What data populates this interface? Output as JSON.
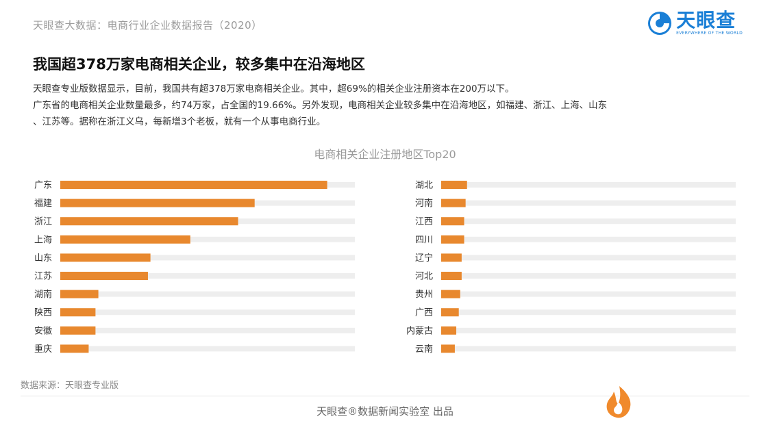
{
  "header": {
    "report_source": "天眼查大数据：电商行业企业数据报告（2020）",
    "brand_name": "天眼查",
    "brand_sub": "EVERYWHERE OF THE WORLD"
  },
  "headline": "我国超378万家电商相关企业，较多集中在沿海地区",
  "description": [
    "天眼查专业版数据显示，目前，我国共有超378万家电商相关企业。其中，超69%的相关企业注册资本在200万以下。",
    "广东省的电商相关企业数量最多，约74万家，占全国的19.66%。另外发现，电商相关企业较多集中在沿海地区，如福建、浙江、上海、山东",
    "、江苏等。据称在浙江义乌，每新增3个老板，就有一个从事电商行业。"
  ],
  "colors": {
    "bar": "#e8882e",
    "track": "#eeeeee",
    "brand": "#1a7fd6",
    "corner_logo": "#f08a2c"
  },
  "chart_data": {
    "type": "bar",
    "orientation": "horizontal",
    "title": "电商相关企业注册地区Top20",
    "unit": "万家",
    "categories": [
      "广东",
      "福建",
      "浙江",
      "上海",
      "山东",
      "江苏",
      "湖南",
      "陕西",
      "安徽",
      "重庆",
      "湖北",
      "河南",
      "江西",
      "四川",
      "辽宁",
      "河北",
      "贵州",
      "广西",
      "内蒙古",
      "云南"
    ],
    "values": [
      74.3,
      54.1,
      49.5,
      36.2,
      25.1,
      24.4,
      10.6,
      9.8,
      9.8,
      7.9,
      7.2,
      6.8,
      6.4,
      6.4,
      5.7,
      5.7,
      5.3,
      4.9,
      4.2,
      3.8
    ],
    "xlim": [
      0,
      82
    ],
    "panels": 2,
    "legend": "none",
    "grid": false
  },
  "footer": {
    "data_source": "数据来源：天眼查专业版",
    "credit": "天眼查®数据新闻实验室 出品"
  }
}
